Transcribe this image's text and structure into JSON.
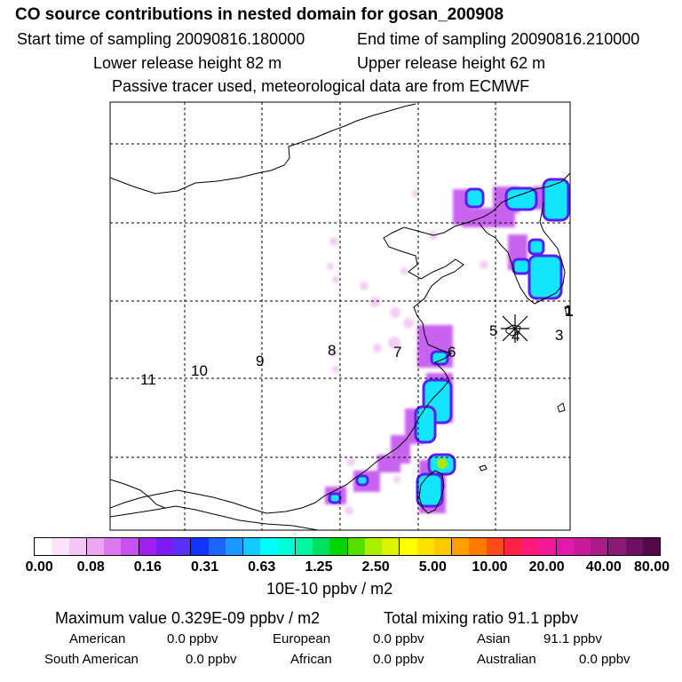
{
  "header": {
    "title": "CO  source contributions in nested domain for gosan_200908",
    "start": "Start time of sampling 20090816.180000",
    "end": "End time of sampling 20090816.210000",
    "lower": "Lower release height   82 m",
    "upper": "Upper release height   62 m",
    "passive": "Passive tracer used, meteorological data are from ECMWF"
  },
  "map": {
    "release_markers": [
      "1",
      "3",
      "4",
      "5",
      "6",
      "7",
      "8",
      "9",
      "10",
      "11"
    ],
    "colors": {
      "grid": "#000000",
      "coast": "#000000"
    }
  },
  "colorbar": {
    "ticks": [
      "0.00",
      "0.08",
      "0.16",
      "0.31",
      "0.63",
      "1.25",
      "2.50",
      "5.00",
      "10.00",
      "20.00",
      "40.00",
      "80.00"
    ],
    "colors": [
      "#ffffff",
      "#fbe4fb",
      "#f3c6f3",
      "#eea6f3",
      "#d97aef",
      "#c552ef",
      "#a21ff2",
      "#7b1df2",
      "#5b2ff6",
      "#1133ff",
      "#1a66ff",
      "#1a99ff",
      "#14cbff",
      "#00ffff",
      "#00ffd5",
      "#00f7a0",
      "#00e060",
      "#00d400",
      "#55e000",
      "#aaee00",
      "#ddf400",
      "#ffff00",
      "#ffe000",
      "#ffc800",
      "#ffa000",
      "#ff7b00",
      "#ff4a1a",
      "#ff2244",
      "#ff1a7a",
      "#f01a99",
      "#e01aaa",
      "#c81a9a",
      "#aa1a88",
      "#8a1a76",
      "#6e1060",
      "#520a4a"
    ],
    "label": "10E-10 ppbv / m2"
  },
  "summary": {
    "max": "Maximum value  0.329E-09 ppbv / m2",
    "total": "Total mixing ratio       91.1 ppbv",
    "regions": [
      {
        "name": "American",
        "value": "0.0 ppbv"
      },
      {
        "name": "European",
        "value": "0.0 ppbv"
      },
      {
        "name": "Asian",
        "value": "91.1 ppbv"
      },
      {
        "name": "South American",
        "value": "0.0 ppbv"
      },
      {
        "name": "African",
        "value": "0.0 ppbv"
      },
      {
        "name": "Australian",
        "value": "0.0 ppbv"
      }
    ]
  }
}
